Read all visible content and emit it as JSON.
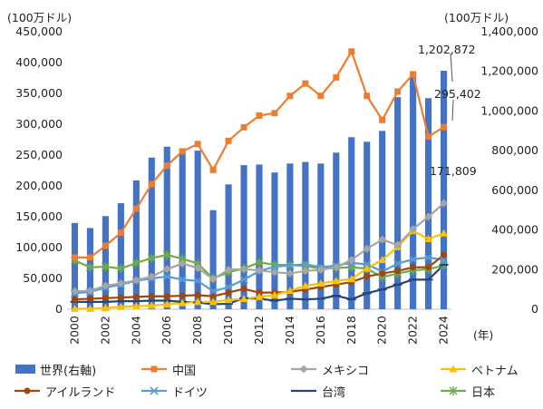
{
  "chart_data": {
    "type": "bar+line",
    "left_axis_unit": "(100万ドル)",
    "right_axis_unit": "(100万ドル)",
    "x_unit": "(年)",
    "categories": [
      "2000",
      "2001",
      "2002",
      "2003",
      "2004",
      "2005",
      "2006",
      "2007",
      "2008",
      "2009",
      "2010",
      "2011",
      "2012",
      "2013",
      "2014",
      "2015",
      "2016",
      "2017",
      "2018",
      "2019",
      "2020",
      "2021",
      "2022",
      "2023",
      "2024"
    ],
    "x_tick_labels": [
      "2000",
      "2002",
      "2004",
      "2006",
      "2008",
      "2010",
      "2012",
      "2014",
      "2016",
      "2018",
      "2020",
      "2022",
      "2024"
    ],
    "left_ylim": [
      0,
      450000
    ],
    "left_ticks": [
      "0",
      "50,000",
      "100,000",
      "150,000",
      "200,000",
      "250,000",
      "300,000",
      "350,000",
      "400,000",
      "450,000"
    ],
    "right_ylim": [
      0,
      1400000
    ],
    "right_ticks": [
      "0",
      "200,000",
      "400,000",
      "600,000",
      "800,000",
      "1,000,000",
      "1,200,000",
      "1,400,000"
    ],
    "bar_series": {
      "name": "世界(右軸)",
      "color": "#4472C4",
      "values": [
        435000,
        410000,
        470000,
        535000,
        650000,
        765000,
        820000,
        795000,
        800000,
        500000,
        630000,
        727000,
        730000,
        690000,
        735000,
        743000,
        735000,
        790000,
        868000,
        845000,
        900000,
        1070000,
        1175000,
        1065000,
        1202872
      ]
    },
    "series": [
      {
        "name": "中国",
        "color": "#ED7D31",
        "marker": "square",
        "values": [
          84000,
          84000,
          103000,
          124000,
          163000,
          203000,
          233000,
          256000,
          268000,
          226000,
          273000,
          295000,
          314000,
          318000,
          346000,
          366000,
          346000,
          376000,
          418000,
          346000,
          307000,
          353000,
          381000,
          280000,
          295402
        ]
      },
      {
        "name": "メキシコ",
        "color": "#A5A5A5",
        "marker": "diamond",
        "values": [
          29000,
          30000,
          38000,
          42000,
          47000,
          53000,
          65000,
          74000,
          67000,
          49000,
          64000,
          65000,
          63000,
          60000,
          58000,
          62000,
          64000,
          68000,
          80000,
          98000,
          113000,
          104000,
          130000,
          150000,
          171809
        ]
      },
      {
        "name": "ベトナム",
        "color": "#FFC000",
        "marker": "triangle",
        "values": [
          1000,
          1000,
          2000,
          4000,
          5000,
          6000,
          8000,
          10000,
          12000,
          12000,
          15000,
          17000,
          20000,
          23000,
          30000,
          38000,
          42000,
          46000,
          49000,
          66000,
          80000,
          101000,
          127000,
          114000,
          123000
        ]
      },
      {
        "name": "アイルランド",
        "color": "#9E480E",
        "marker": "circle",
        "values": [
          16000,
          17000,
          18000,
          19000,
          20000,
          21000,
          21000,
          22000,
          23000,
          21000,
          27000,
          33000,
          27000,
          27000,
          28000,
          32000,
          36000,
          40000,
          44000,
          53000,
          58000,
          62000,
          68000,
          68000,
          88000
        ]
      },
      {
        "name": "ドイツ",
        "color": "#5B9BD5",
        "marker": "x",
        "values": [
          26000,
          28000,
          35000,
          40000,
          46000,
          50000,
          53000,
          48000,
          46000,
          29000,
          36000,
          48000,
          62000,
          69000,
          71000,
          73000,
          68000,
          71000,
          75000,
          73000,
          61000,
          74000,
          81000,
          84000,
          80000
        ]
      },
      {
        "name": "台湾",
        "color": "#264478",
        "marker": "dash",
        "values": [
          12000,
          12000,
          12000,
          13000,
          13000,
          14000,
          14000,
          12000,
          11000,
          8000,
          9000,
          18000,
          17000,
          14000,
          17000,
          16000,
          17000,
          22000,
          16000,
          26000,
          32000,
          40000,
          48000,
          48000,
          72000
        ]
      },
      {
        "name": "日本",
        "color": "#70AD47",
        "marker": "star",
        "values": [
          79000,
          68000,
          69000,
          66000,
          75000,
          83000,
          88000,
          82000,
          74000,
          50000,
          60000,
          66000,
          76000,
          72000,
          72000,
          70000,
          66000,
          67000,
          68000,
          66000,
          52000,
          58000,
          63000,
          65000,
          71000
        ]
      }
    ],
    "annotations": [
      "1,202,872",
      "295,402",
      "171,809"
    ],
    "legend_placement": "bottom"
  }
}
